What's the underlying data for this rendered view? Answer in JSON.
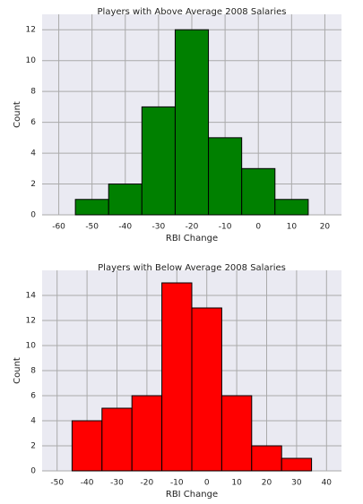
{
  "chart_data": [
    {
      "type": "histogram",
      "title": "Players with Above Average 2008 Salaries",
      "xlabel": "RBI Change",
      "ylabel": "Count",
      "bins": [
        -55,
        -45,
        -35,
        -25,
        -15,
        -5,
        5,
        15
      ],
      "counts": [
        1,
        2,
        7,
        12,
        5,
        3,
        1
      ],
      "color": "#008000",
      "xlim": [
        -65,
        25
      ],
      "xticks": [
        -60,
        -50,
        -40,
        -30,
        -20,
        -10,
        0,
        10,
        20
      ],
      "ylim": [
        0,
        13
      ],
      "yticks": [
        0,
        2,
        4,
        6,
        8,
        10,
        12
      ],
      "grid": true
    },
    {
      "type": "histogram",
      "title": "Players with Below Average 2008 Salaries",
      "xlabel": "RBI Change",
      "ylabel": "Count",
      "bins": [
        -45,
        -35,
        -25,
        -15,
        -5,
        5,
        15,
        25,
        35
      ],
      "counts": [
        4,
        5,
        6,
        15,
        13,
        6,
        2,
        1
      ],
      "color": "#ff0000",
      "xlim": [
        -55,
        45
      ],
      "xticks": [
        -50,
        -40,
        -30,
        -20,
        -10,
        0,
        10,
        20,
        30,
        40
      ],
      "ylim": [
        0,
        16
      ],
      "yticks": [
        0,
        2,
        4,
        6,
        8,
        10,
        12,
        14
      ],
      "grid": true
    }
  ]
}
